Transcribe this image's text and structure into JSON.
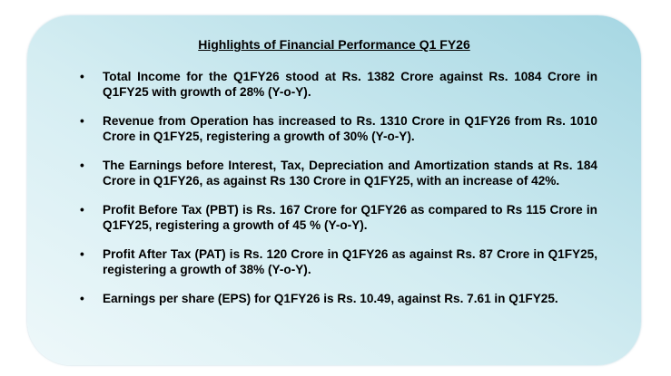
{
  "header": {
    "title": "Highlights of Financial Performance Q1 FY26"
  },
  "bullets": [
    "Total Income for the Q1FY26 stood at Rs. 1382 Crore against Rs. 1084 Crore in Q1FY25 with growth of 28% (Y-o-Y).",
    "Revenue from Operation has increased to Rs. 1310 Crore in Q1FY26 from Rs. 1010 Crore in Q1FY25, registering a growth of 30% (Y-o-Y).",
    "The Earnings before Interest, Tax, Depreciation and Amortization stands at Rs. 184 Crore in Q1FY26, as against Rs 130 Crore in Q1FY25, with an increase of 42%.",
    "Profit Before Tax (PBT) is Rs. 167 Crore for Q1FY26 as compared to Rs 115 Crore in Q1FY25, registering a growth of 45 % (Y-o-Y).",
    "Profit After Tax (PAT) is Rs. 120 Crore in Q1FY26 as against Rs. 87 Crore in Q1FY25, registering a growth of 38% (Y-o-Y).",
    "Earnings per share (EPS) for Q1FY26 is Rs. 10.49, against Rs. 7.61 in Q1FY25."
  ]
}
